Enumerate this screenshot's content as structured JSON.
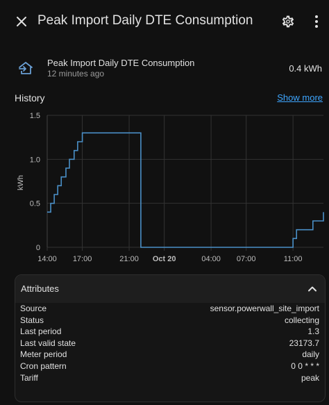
{
  "dialog": {
    "title": "Peak Import Daily DTE Consumption"
  },
  "entity": {
    "name": "Peak Import Daily DTE Consumption",
    "last_changed": "12 minutes ago",
    "state": "0.4 kWh",
    "icon": "home-import-outline-icon"
  },
  "history": {
    "title": "History",
    "show_more": "Show more"
  },
  "chart_data": {
    "type": "line",
    "ylabel": "kWh",
    "ylim": [
      0,
      1.5
    ],
    "y_ticks": [
      "0",
      "0.5",
      "1.0",
      "1.5"
    ],
    "x_ticks": [
      "14:00",
      "17:00",
      "21:00",
      "Oct 20",
      "04:00",
      "07:00",
      "11:00"
    ],
    "x_tick_hours": [
      14,
      17,
      21,
      24,
      28,
      31,
      35
    ],
    "xlim_hours": [
      14,
      37.6
    ],
    "grid": true,
    "line_color": "#4a90c8",
    "series": [
      {
        "x": [
          14,
          14.3,
          14.6,
          14.9,
          15.2,
          15.6,
          15.9,
          16.3,
          16.6,
          17.0,
          17.3,
          17.7,
          18.0,
          18.3,
          18.8,
          22.0,
          35.0,
          35.3,
          35.6,
          36.7,
          37.6
        ],
        "values": [
          0.4,
          0.5,
          0.6,
          0.7,
          0.8,
          0.9,
          1.0,
          1.1,
          1.2,
          1.3,
          1.3,
          1.3,
          1.3,
          1.3,
          1.3,
          0,
          0.1,
          0.2,
          0.2,
          0.3,
          0.4
        ]
      }
    ]
  },
  "attributes": {
    "title": "Attributes",
    "rows": [
      {
        "key": "Source",
        "value": "sensor.powerwall_site_import"
      },
      {
        "key": "Status",
        "value": "collecting"
      },
      {
        "key": "Last period",
        "value": "1.3"
      },
      {
        "key": "Last valid state",
        "value": "23173.7"
      },
      {
        "key": "Meter period",
        "value": "daily"
      },
      {
        "key": "Cron pattern",
        "value": "0 0 * * *"
      },
      {
        "key": "Tariff",
        "value": "peak"
      }
    ]
  }
}
